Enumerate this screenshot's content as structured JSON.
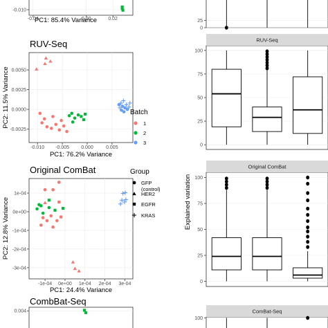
{
  "colors": {
    "batch1": "#F8766D",
    "batch2": "#00BA38",
    "batch3": "#619CFF",
    "panel": "#ffffff",
    "grid": "#ebebeb",
    "strip": "#d9d9d9",
    "frame": "#333333"
  },
  "legend_batch": {
    "title": "Batch",
    "items": [
      {
        "label": "1",
        "color": "#F8766D"
      },
      {
        "label": "2",
        "color": "#00BA38"
      },
      {
        "label": "3",
        "color": "#619CFF"
      }
    ]
  },
  "legend_group": {
    "title": "Group",
    "items": [
      {
        "label": "GFP",
        "label2": "(control)",
        "shape": "circle"
      },
      {
        "label": "HER2",
        "shape": "triangle"
      },
      {
        "label": "EGFR",
        "shape": "square"
      },
      {
        "label": "KRAS",
        "shape": "cross"
      }
    ]
  },
  "right_ylabel": "Explained variation",
  "chart_data": [
    {
      "type": "scatter",
      "title": "",
      "xlabel": "PC1: 85.4% Variance",
      "ylabel": "",
      "xlim": [
        -0.043,
        0.035
      ],
      "ylim": [
        -0.015,
        0.0
      ],
      "xticks": [
        {
          "v": -0.04,
          "label": "-0.04"
        },
        {
          "v": 0.0,
          "label": "0.00"
        },
        {
          "v": 0.02,
          "label": "0.02"
        }
      ],
      "yticks": [
        {
          "v": -0.01,
          "label": "-0.010"
        }
      ],
      "points": [
        {
          "x": 0.027,
          "y": -0.0075,
          "batch": "2",
          "shape": "square"
        },
        {
          "x": 0.027,
          "y": -0.009,
          "batch": "2",
          "shape": "square"
        },
        {
          "x": 0.0275,
          "y": -0.0105,
          "batch": "2",
          "shape": "square"
        }
      ]
    },
    {
      "type": "scatter",
      "title": "RUV-Seq",
      "xlabel": "PC1: 76.2% Variance",
      "ylabel": "PC2: 11.5% Variance",
      "xlim": [
        -0.0117,
        0.0092
      ],
      "ylim": [
        -0.0042,
        0.0072
      ],
      "xticks": [
        {
          "v": -0.01,
          "label": "-0.010"
        },
        {
          "v": -0.005,
          "label": "-0.005"
        },
        {
          "v": 0.0,
          "label": "0.000"
        },
        {
          "v": 0.005,
          "label": "0.005"
        }
      ],
      "yticks": [
        {
          "v": 0.005,
          "label": "0.0050"
        },
        {
          "v": 0.0025,
          "label": "0.0025"
        },
        {
          "v": 0.0,
          "label": "0.0000"
        },
        {
          "v": -0.0025,
          "label": "-0.0025"
        }
      ],
      "points": [
        {
          "x": -0.0083,
          "y": 0.0065,
          "batch": "1",
          "shape": "triangle"
        },
        {
          "x": -0.0074,
          "y": 0.0061,
          "batch": "1",
          "shape": "triangle"
        },
        {
          "x": -0.0085,
          "y": 0.0058,
          "batch": "1",
          "shape": "triangle"
        },
        {
          "x": -0.0102,
          "y": 0.0051,
          "batch": "1",
          "shape": "triangle"
        },
        {
          "x": -0.0095,
          "y": -0.0005,
          "batch": "1",
          "shape": "circle"
        },
        {
          "x": -0.0086,
          "y": -0.0012,
          "batch": "1",
          "shape": "circle"
        },
        {
          "x": -0.0091,
          "y": -0.0017,
          "batch": "1",
          "shape": "circle"
        },
        {
          "x": -0.0081,
          "y": -0.0022,
          "batch": "1",
          "shape": "circle"
        },
        {
          "x": -0.0072,
          "y": -0.0024,
          "batch": "1",
          "shape": "circle"
        },
        {
          "x": -0.0063,
          "y": -0.0019,
          "batch": "1",
          "shape": "circle"
        },
        {
          "x": -0.0056,
          "y": -0.0026,
          "batch": "1",
          "shape": "circle"
        },
        {
          "x": -0.0047,
          "y": -0.0021,
          "batch": "1",
          "shape": "circle"
        },
        {
          "x": -0.0041,
          "y": -0.0028,
          "batch": "1",
          "shape": "circle"
        },
        {
          "x": -0.0052,
          "y": -0.0014,
          "batch": "1",
          "shape": "circle"
        },
        {
          "x": -0.0069,
          "y": -0.0009,
          "batch": "1",
          "shape": "circle"
        },
        {
          "x": -0.0036,
          "y": -0.0008,
          "batch": "2",
          "shape": "circle"
        },
        {
          "x": -0.0031,
          "y": -0.0005,
          "batch": "2",
          "shape": "circle"
        },
        {
          "x": -0.0025,
          "y": -0.0011,
          "batch": "2",
          "shape": "circle"
        },
        {
          "x": -0.0018,
          "y": -0.0007,
          "batch": "2",
          "shape": "circle"
        },
        {
          "x": -0.0012,
          "y": -0.0009,
          "batch": "2",
          "shape": "square"
        },
        {
          "x": -0.0007,
          "y": -0.0013,
          "batch": "2",
          "shape": "square"
        },
        {
          "x": -0.0004,
          "y": -0.0006,
          "batch": "2",
          "shape": "square"
        },
        {
          "x": -0.0029,
          "y": -0.0016,
          "batch": "2",
          "shape": "circle"
        },
        {
          "x": 0.0068,
          "y": 0.0008,
          "batch": "3",
          "shape": "cross"
        },
        {
          "x": 0.0073,
          "y": 0.0011,
          "batch": "3",
          "shape": "cross"
        },
        {
          "x": 0.0079,
          "y": 0.0006,
          "batch": "3",
          "shape": "cross"
        },
        {
          "x": 0.0066,
          "y": 0.0002,
          "batch": "3",
          "shape": "cross"
        },
        {
          "x": 0.0084,
          "y": 0.0003,
          "batch": "3",
          "shape": "cross"
        },
        {
          "x": 0.0071,
          "y": 0.0004,
          "batch": "3",
          "shape": "circle"
        },
        {
          "x": 0.0076,
          "y": 0.0002,
          "batch": "3",
          "shape": "circle"
        },
        {
          "x": 0.0069,
          "y": -0.0001,
          "batch": "3",
          "shape": "circle"
        },
        {
          "x": 0.0081,
          "y": 0.0,
          "batch": "3",
          "shape": "circle"
        },
        {
          "x": 0.0074,
          "y": -0.0003,
          "batch": "3",
          "shape": "circle"
        },
        {
          "x": 0.0086,
          "y": 0.0008,
          "batch": "3",
          "shape": "cross"
        },
        {
          "x": 0.0064,
          "y": 0.0006,
          "batch": "3",
          "shape": "circle"
        }
      ]
    },
    {
      "type": "scatter",
      "title": "Original ComBat",
      "xlabel": "PC1: 24.4% Variance",
      "ylabel": "PC2: 12.8% Variance",
      "xlim": [
        -0.00018,
        0.00034
      ],
      "ylim": [
        -0.00036,
        0.000178
      ],
      "xticks": [
        {
          "v": -0.0001,
          "label": "-1e-04"
        },
        {
          "v": 0.0,
          "label": "0e+00"
        },
        {
          "v": 0.0001,
          "label": "1e-04"
        },
        {
          "v": 0.0002,
          "label": "2e-04"
        },
        {
          "v": 0.0003,
          "label": "3e-04"
        }
      ],
      "yticks": [
        {
          "v": 0.0001,
          "label": "1e-04"
        },
        {
          "v": 0.0,
          "label": "0e+00"
        },
        {
          "v": -0.0001,
          "label": "-1e-04"
        },
        {
          "v": -0.0002,
          "label": "-2e-04"
        },
        {
          "v": -0.0003,
          "label": "-3e-04"
        }
      ],
      "points": [
        {
          "x": -3e-05,
          "y": 0.000158,
          "batch": "1",
          "shape": "circle"
        },
        {
          "x": -6e-05,
          "y": 0.000118,
          "batch": "1",
          "shape": "circle"
        },
        {
          "x": -0.0001,
          "y": 0.000118,
          "batch": "1",
          "shape": "circle"
        },
        {
          "x": -0.00014,
          "y": 1.5e-05,
          "batch": "2",
          "shape": "circle"
        },
        {
          "x": -0.00012,
          "y": 3.2e-05,
          "batch": "2",
          "shape": "square"
        },
        {
          "x": -0.0001,
          "y": 4.8e-05,
          "batch": "1",
          "shape": "triangle"
        },
        {
          "x": -8e-05,
          "y": 2.2e-05,
          "batch": "2",
          "shape": "circle"
        },
        {
          "x": -5e-05,
          "y": 8e-06,
          "batch": "2",
          "shape": "square"
        },
        {
          "x": -3e-05,
          "y": 5.2e-05,
          "batch": "1",
          "shape": "square"
        },
        {
          "x": -0.00011,
          "y": -8e-06,
          "batch": "2",
          "shape": "circle"
        },
        {
          "x": -7e-05,
          "y": -2.2e-05,
          "batch": "1",
          "shape": "circle"
        },
        {
          "x": -9e-05,
          "y": -4.8e-05,
          "batch": "1",
          "shape": "circle"
        },
        {
          "x": -4e-05,
          "y": -4.8e-05,
          "batch": "1",
          "shape": "circle"
        },
        {
          "x": -0.00012,
          "y": -7.2e-05,
          "batch": "1",
          "shape": "circle"
        },
        {
          "x": -6e-05,
          "y": -8.2e-05,
          "batch": "1",
          "shape": "circle"
        },
        {
          "x": -2e-05,
          "y": -2.8e-05,
          "batch": "1",
          "shape": "square"
        },
        {
          "x": -0.00013,
          "y": 3.8e-05,
          "batch": "2",
          "shape": "circle"
        },
        {
          "x": -8e-05,
          "y": 6.2e-05,
          "batch": "2",
          "shape": "square"
        },
        {
          "x": -1e-05,
          "y": 1.8e-05,
          "batch": "2",
          "shape": "square"
        },
        {
          "x": -0.00011,
          "y": -3.2e-05,
          "batch": "1",
          "shape": "circle"
        },
        {
          "x": 4e-05,
          "y": -0.00027,
          "batch": "1",
          "shape": "triangle"
        },
        {
          "x": 5e-05,
          "y": -0.000305,
          "batch": "1",
          "shape": "triangle"
        },
        {
          "x": 7e-05,
          "y": -0.000318,
          "batch": "1",
          "shape": "triangle"
        },
        {
          "x": 0.00029,
          "y": 9.8e-05,
          "batch": "3",
          "shape": "cross"
        },
        {
          "x": 0.000302,
          "y": 0.000102,
          "batch": "3",
          "shape": "cross"
        },
        {
          "x": 0.000285,
          "y": 6.2e-05,
          "batch": "3",
          "shape": "cross"
        },
        {
          "x": 0.000298,
          "y": 5.2e-05,
          "batch": "3",
          "shape": "cross"
        },
        {
          "x": 0.000278,
          "y": 4.2e-05,
          "batch": "3",
          "shape": "cross"
        },
        {
          "x": 0.000305,
          "y": 6.5e-05,
          "batch": "3",
          "shape": "cross"
        }
      ]
    },
    {
      "type": "scatter",
      "title": "CombBat-Seq",
      "xlabel": "",
      "ylabel": "",
      "xlim": [
        -0.04,
        0.035
      ],
      "ylim": [
        0.0,
        0.0046
      ],
      "xticks": [],
      "yticks": [
        {
          "v": 0.004,
          "label": "0.004"
        }
      ],
      "points": [
        {
          "x": 0.0,
          "y": 0.0041,
          "batch": "2",
          "shape": "square"
        },
        {
          "x": 0.001,
          "y": 0.0037,
          "batch": "2",
          "shape": "square"
        }
      ]
    },
    {
      "type": "box",
      "title": "",
      "ylabel": "",
      "ylim": [
        0,
        100
      ],
      "yticks": [
        {
          "v": 0,
          "label": "0"
        },
        {
          "v": 25,
          "label": "25"
        }
      ],
      "boxes": [
        {
          "q1": 0,
          "median": 0,
          "q3": 0,
          "lo": 0,
          "hi": 100,
          "outliers": [
            0
          ]
        },
        {
          "q1": 0,
          "median": 0,
          "q3": 0,
          "lo": 0,
          "hi": 100,
          "outliers": []
        },
        {
          "q1": 0,
          "median": 0,
          "q3": 0,
          "lo": 0,
          "hi": 100,
          "outliers": []
        }
      ]
    },
    {
      "type": "box",
      "title": "RUV-Seq",
      "ylabel": "",
      "ylim": [
        -5,
        105
      ],
      "yticks": [
        {
          "v": 100,
          "label": "100"
        },
        {
          "v": 75,
          "label": "75"
        },
        {
          "v": 50,
          "label": "50"
        },
        {
          "v": 25,
          "label": "25"
        },
        {
          "v": 0,
          "label": "0"
        }
      ],
      "boxes": [
        {
          "q1": 19,
          "median": 54,
          "q3": 80,
          "lo": 0,
          "hi": 100,
          "outliers": []
        },
        {
          "q1": 14,
          "median": 29,
          "q3": 40,
          "lo": 0,
          "hi": 79,
          "outliers": [
            81,
            84,
            87,
            90,
            93,
            96,
            99
          ]
        },
        {
          "q1": 12,
          "median": 37,
          "q3": 72,
          "lo": 0,
          "hi": 100,
          "outliers": []
        }
      ]
    },
    {
      "type": "box",
      "title": "Original ComBat",
      "ylabel": "",
      "ylim": [
        -5,
        105
      ],
      "yticks": [
        {
          "v": 100,
          "label": "100"
        },
        {
          "v": 75,
          "label": "75"
        },
        {
          "v": 50,
          "label": "50"
        },
        {
          "v": 25,
          "label": "25"
        },
        {
          "v": 0,
          "label": "0"
        }
      ],
      "boxes": [
        {
          "q1": 11,
          "median": 24,
          "q3": 42,
          "lo": 0,
          "hi": 88,
          "outliers": [
            90,
            93,
            96,
            99
          ]
        },
        {
          "q1": 11,
          "median": 24,
          "q3": 42,
          "lo": 0,
          "hi": 88,
          "outliers": [
            90,
            93,
            96,
            99
          ]
        },
        {
          "q1": 3,
          "median": 6,
          "q3": 13,
          "lo": 0,
          "hi": 29,
          "outliers": [
            33,
            38,
            43,
            48,
            52,
            58,
            64,
            70,
            78,
            85,
            94,
            100
          ]
        }
      ]
    },
    {
      "type": "box",
      "title": "ComBat-Seq",
      "ylabel": "",
      "ylim": [
        -5,
        105
      ],
      "yticks": [
        {
          "v": 100,
          "label": "100"
        }
      ],
      "boxes": [
        {
          "q1": 0,
          "median": 0,
          "q3": 0,
          "lo": 0,
          "hi": 100,
          "outliers": []
        },
        {
          "q1": 0,
          "median": 0,
          "q3": 0,
          "lo": 0,
          "hi": 100,
          "outliers": []
        },
        {
          "q1": 0,
          "median": 0,
          "q3": 0,
          "lo": 0,
          "hi": 0,
          "outliers": [
            100
          ]
        }
      ]
    }
  ]
}
